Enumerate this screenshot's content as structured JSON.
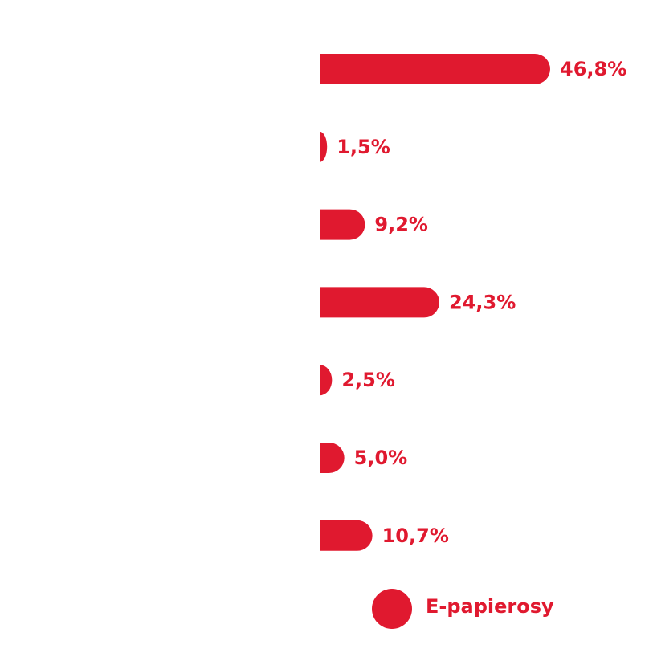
{
  "chart_data": {
    "type": "bar",
    "orientation": "horizontal",
    "categories": [
      null,
      null,
      null,
      null,
      null,
      null,
      null
    ],
    "series": [
      {
        "name": "E-papierosy",
        "color": "#e0192f",
        "values": [
          46.8,
          1.5,
          9.2,
          24.3,
          2.5,
          5.0,
          10.7
        ],
        "value_labels": [
          "46,8%",
          "1,5%",
          "9,2%",
          "24,3%",
          "2,5%",
          "5,0%",
          "10,7%"
        ]
      }
    ]
  }
}
